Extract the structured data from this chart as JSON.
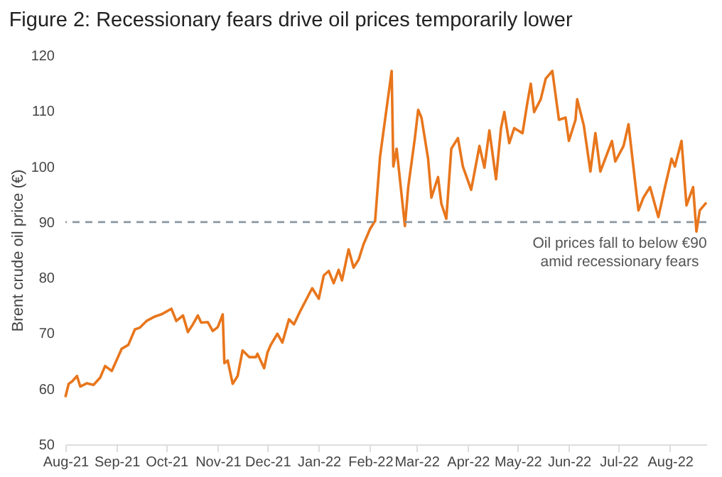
{
  "chart_data": {
    "type": "line",
    "title": "Figure 2: Recessionary fears drive oil prices temporarily lower",
    "ylabel": "Brent crude oil price (€)",
    "x": [
      "2021-08-01",
      "2021-08-03",
      "2021-08-05",
      "2021-08-08",
      "2021-08-10",
      "2021-08-14",
      "2021-08-18",
      "2021-08-22",
      "2021-08-25",
      "2021-08-29",
      "2021-09-04",
      "2021-09-08",
      "2021-09-12",
      "2021-09-15",
      "2021-09-19",
      "2021-09-24",
      "2021-09-28",
      "2021-10-04",
      "2021-10-07",
      "2021-10-11",
      "2021-10-14",
      "2021-10-17",
      "2021-10-20",
      "2021-10-22",
      "2021-10-26",
      "2021-10-29",
      "2021-11-01",
      "2021-11-04",
      "2021-11-05",
      "2021-11-07",
      "2021-11-10",
      "2021-11-13",
      "2021-11-16",
      "2021-11-20",
      "2021-11-24",
      "2021-11-25",
      "2021-11-29",
      "2021-12-01",
      "2021-12-03",
      "2021-12-07",
      "2021-12-10",
      "2021-12-14",
      "2021-12-17",
      "2021-12-21",
      "2021-12-24",
      "2021-12-28",
      "2022-01-01",
      "2022-01-04",
      "2022-01-07",
      "2022-01-10",
      "2022-01-13",
      "2022-01-15",
      "2022-01-19",
      "2022-01-22",
      "2022-01-25",
      "2022-01-28",
      "2022-02-01",
      "2022-02-04",
      "2022-02-07",
      "2022-02-10",
      "2022-02-14",
      "2022-02-15",
      "2022-02-17",
      "2022-02-22",
      "2022-02-24",
      "2022-02-28",
      "2022-03-02",
      "2022-03-04",
      "2022-03-08",
      "2022-03-10",
      "2022-03-14",
      "2022-03-16",
      "2022-03-19",
      "2022-03-22",
      "2022-03-26",
      "2022-03-29",
      "2022-04-03",
      "2022-04-08",
      "2022-04-11",
      "2022-04-14",
      "2022-04-18",
      "2022-04-21",
      "2022-04-23",
      "2022-04-26",
      "2022-04-29",
      "2022-05-04",
      "2022-05-07",
      "2022-05-09",
      "2022-05-11",
      "2022-05-15",
      "2022-05-18",
      "2022-05-22",
      "2022-05-26",
      "2022-05-30",
      "2022-06-01",
      "2022-06-05",
      "2022-06-06",
      "2022-06-10",
      "2022-06-14",
      "2022-06-17",
      "2022-06-20",
      "2022-06-27",
      "2022-06-29",
      "2022-07-04",
      "2022-07-07",
      "2022-07-11",
      "2022-07-13",
      "2022-07-16",
      "2022-07-20",
      "2022-07-25",
      "2022-07-29",
      "2022-08-02",
      "2022-08-04",
      "2022-08-08",
      "2022-08-11",
      "2022-08-15",
      "2022-08-17",
      "2022-08-19",
      "2022-08-23"
    ],
    "series": [
      {
        "color": "#e8761c",
        "values": [
          58.5,
          60.9,
          61.3,
          62.3,
          60.4,
          61,
          60.7,
          62,
          64.1,
          63.2,
          67.2,
          67.9,
          70.7,
          71,
          72.2,
          73,
          73.4,
          74.4,
          72.2,
          73.2,
          70.2,
          71.6,
          73.2,
          71.9,
          72,
          70.4,
          71.1,
          73.4,
          64.6,
          65.1,
          60.9,
          62.3,
          66.9,
          65.7,
          65.7,
          66.3,
          63.7,
          66.5,
          67.9,
          69.9,
          68.3,
          72.5,
          71.6,
          74.1,
          75.8,
          78.1,
          76.2,
          80.4,
          81.2,
          79,
          81.4,
          79.5,
          85.1,
          81.8,
          83.2,
          86,
          88.8,
          90.2,
          101.8,
          108.4,
          117.2,
          100,
          103.2,
          89.3,
          96.3,
          105.1,
          110.2,
          108.8,
          101.4,
          94.4,
          98.1,
          93.3,
          90.6,
          103.2,
          105.1,
          100,
          95.8,
          103.7,
          99.8,
          106.5,
          97.7,
          106.9,
          109.8,
          104.2,
          106.9,
          106,
          111.6,
          114.9,
          109.8,
          112.1,
          115.8,
          117.2,
          108.4,
          108.8,
          104.6,
          108.4,
          112.1,
          107.4,
          99.1,
          106,
          99.1,
          104.6,
          100.9,
          103.7,
          107.6,
          97.2,
          92.1,
          94.4,
          96.3,
          90.9,
          96.3,
          101.4,
          100,
          104.6,
          93,
          96.3,
          88.3,
          92.1,
          93.5
        ]
      }
    ],
    "xlim": [
      "2021-08-01",
      "2022-08-23"
    ],
    "xticks": [
      {
        "value": "2021-08-01",
        "label": "Aug-21"
      },
      {
        "value": "2021-09-01",
        "label": "Sep-21"
      },
      {
        "value": "2021-10-01",
        "label": "Oct-21"
      },
      {
        "value": "2021-11-01",
        "label": "Nov-21"
      },
      {
        "value": "2021-12-01",
        "label": "Dec-21"
      },
      {
        "value": "2022-01-01",
        "label": "Jan-22"
      },
      {
        "value": "2022-02-01",
        "label": "Feb-22"
      },
      {
        "value": "2022-03-01",
        "label": "Mar-22"
      },
      {
        "value": "2022-04-01",
        "label": "Apr-22"
      },
      {
        "value": "2022-05-01",
        "label": "May-22"
      },
      {
        "value": "2022-06-01",
        "label": "Jun-22"
      },
      {
        "value": "2022-07-01",
        "label": "Jul-22"
      },
      {
        "value": "2022-08-01",
        "label": "Aug-22"
      }
    ],
    "ylim": [
      50,
      120
    ],
    "yticks": [
      50,
      60,
      70,
      80,
      90,
      100,
      110,
      120
    ],
    "ref_lines": [
      {
        "axis": "y",
        "value": 90,
        "label": "Oil prices fall to below €90\namid recessionary fears",
        "color": "#8c96a0",
        "line_style": "dashed"
      }
    ],
    "grid": false
  }
}
